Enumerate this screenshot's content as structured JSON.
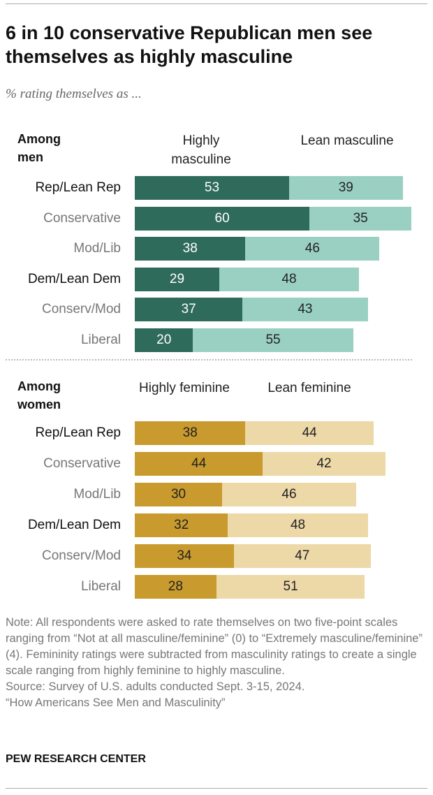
{
  "title": "6 in 10 conservative Republican men see themselves as highly masculine",
  "subtitle": "% rating themselves as ...",
  "chart_data": [
    {
      "type": "bar",
      "orientation": "horizontal",
      "stacked": true,
      "group_label": "Among men",
      "categories": [
        "Rep/Lean Rep",
        "Conservative",
        "Mod/Lib",
        "Dem/Lean Dem",
        "Conserv/Mod",
        "Liberal"
      ],
      "series": [
        {
          "name": "Highly masculine",
          "color": "#2f6b5b",
          "values": [
            53,
            60,
            38,
            29,
            37,
            20
          ]
        },
        {
          "name": "Lean masculine",
          "color": "#9ad0c2",
          "values": [
            39,
            35,
            46,
            48,
            43,
            55
          ]
        }
      ]
    },
    {
      "type": "bar",
      "orientation": "horizontal",
      "stacked": true,
      "group_label": "Among women",
      "categories": [
        "Rep/Lean Rep",
        "Conservative",
        "Mod/Lib",
        "Dem/Lean Dem",
        "Conserv/Mod",
        "Liberal"
      ],
      "series": [
        {
          "name": "Highly feminine",
          "color": "#c99a2e",
          "values": [
            38,
            44,
            30,
            32,
            34,
            28
          ]
        },
        {
          "name": "Lean feminine",
          "color": "#edd9a8",
          "values": [
            44,
            42,
            46,
            48,
            47,
            51
          ]
        }
      ]
    }
  ],
  "note": "Note: All respondents were asked to rate themselves on two five-point scales ranging from “Not at all masculine/feminine” (0) to “Extremely masculine/feminine” (4). Femininity ratings were subtracted from masculinity ratings to create a single scale ranging from highly feminine to highly masculine.",
  "source": "Source: Survey of U.S. adults conducted Sept. 3-15, 2024.",
  "report": "“How Americans See Men and Masculinity”",
  "logo": "PEW RESEARCH CENTER"
}
